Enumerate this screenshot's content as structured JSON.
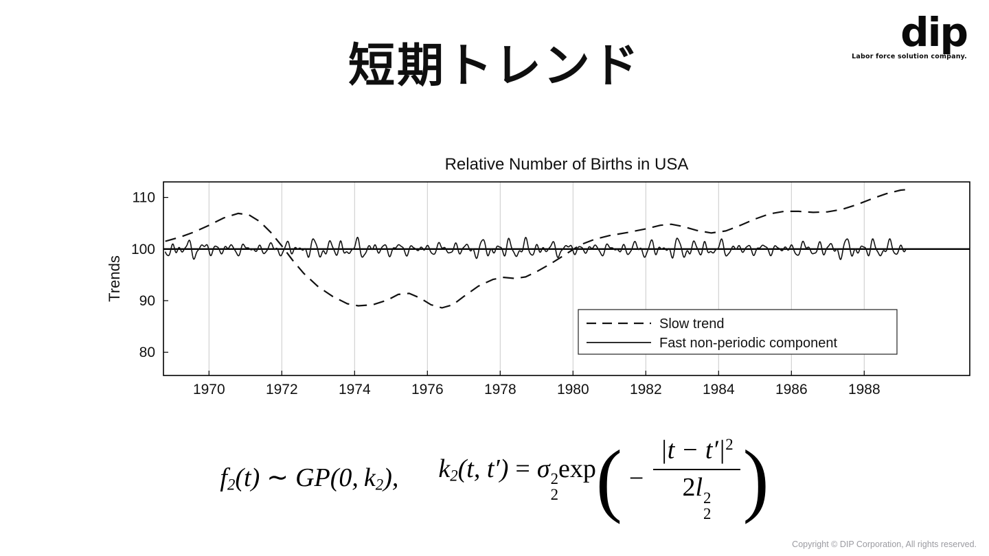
{
  "slide": {
    "title": "短期トレンド"
  },
  "logo": {
    "text": "dip",
    "tagline": "Labor force solution company."
  },
  "footer": {
    "copyright": "Copyright © DIP Corporation, All rights reserved."
  },
  "formula": {
    "f": "f",
    "f_sub": "2",
    "f_arg": "(t)",
    "sim": "∼",
    "gp": "GP",
    "gp_open": "(0,",
    "k1": "k",
    "k1_sub": "2",
    "gp_close": "),",
    "k2": "k",
    "k2_sub": "2",
    "k2_args": "(t, t′)",
    "eq": "=",
    "sigma": "σ",
    "sigma_sup": "2",
    "sigma_sub": "2",
    "exp": "exp",
    "lparen": "(",
    "minus": "−",
    "num_body": "|t − t′|",
    "num_sup": "2",
    "den_coef": "2",
    "den_var": "l",
    "den_sup": "2",
    "den_sub": "2",
    "rparen": ")"
  },
  "chart_data": {
    "type": "line",
    "title": "Relative Number of Births in USA",
    "xlabel": "",
    "ylabel": "Trends",
    "xlim": [
      1968.75,
      1990.9
    ],
    "ylim": [
      75.5,
      113
    ],
    "xticks": [
      1970,
      1972,
      1974,
      1976,
      1978,
      1980,
      1982,
      1984,
      1986,
      1988
    ],
    "yticks": [
      80,
      90,
      100,
      110
    ],
    "grid": "vertical-gridlines-light-gray",
    "baseline": 100,
    "legend": {
      "position": "lower right",
      "entries": [
        {
          "label": "Slow trend",
          "style": "dashed"
        },
        {
          "label": "Fast non-periodic component",
          "style": "solid"
        }
      ]
    },
    "series": [
      {
        "name": "Slow trend",
        "style": "dashed",
        "points": [
          [
            1968.8,
            101.5
          ],
          [
            1969.2,
            102.3
          ],
          [
            1969.6,
            103.3
          ],
          [
            1970.0,
            104.6
          ],
          [
            1970.4,
            106.0
          ],
          [
            1970.8,
            106.9
          ],
          [
            1971.1,
            106.6
          ],
          [
            1971.4,
            105.3
          ],
          [
            1971.7,
            103.2
          ],
          [
            1972.0,
            100.6
          ],
          [
            1972.3,
            97.8
          ],
          [
            1972.6,
            95.3
          ],
          [
            1973.0,
            92.7
          ],
          [
            1973.4,
            90.8
          ],
          [
            1973.8,
            89.4
          ],
          [
            1974.1,
            89.0
          ],
          [
            1974.5,
            89.2
          ],
          [
            1974.9,
            90.1
          ],
          [
            1975.2,
            91.2
          ],
          [
            1975.5,
            91.4
          ],
          [
            1975.8,
            90.5
          ],
          [
            1976.1,
            89.2
          ],
          [
            1976.4,
            88.6
          ],
          [
            1976.7,
            89.2
          ],
          [
            1977.0,
            90.8
          ],
          [
            1977.4,
            92.8
          ],
          [
            1977.8,
            94.1
          ],
          [
            1978.1,
            94.5
          ],
          [
            1978.4,
            94.3
          ],
          [
            1978.7,
            94.6
          ],
          [
            1979.0,
            95.6
          ],
          [
            1979.4,
            97.2
          ],
          [
            1979.8,
            99.0
          ],
          [
            1980.2,
            100.8
          ],
          [
            1980.6,
            101.9
          ],
          [
            1981.0,
            102.6
          ],
          [
            1981.5,
            103.2
          ],
          [
            1982.0,
            103.9
          ],
          [
            1982.4,
            104.6
          ],
          [
            1982.7,
            104.8
          ],
          [
            1983.0,
            104.4
          ],
          [
            1983.4,
            103.6
          ],
          [
            1983.8,
            103.1
          ],
          [
            1984.2,
            103.5
          ],
          [
            1984.6,
            104.6
          ],
          [
            1985.0,
            105.8
          ],
          [
            1985.4,
            106.8
          ],
          [
            1985.8,
            107.3
          ],
          [
            1986.2,
            107.3
          ],
          [
            1986.6,
            107.1
          ],
          [
            1987.0,
            107.2
          ],
          [
            1987.4,
            107.7
          ],
          [
            1987.8,
            108.6
          ],
          [
            1988.2,
            109.7
          ],
          [
            1988.6,
            110.7
          ],
          [
            1989.0,
            111.4
          ],
          [
            1989.15,
            111.5
          ]
        ]
      },
      {
        "name": "Fast non-periodic component",
        "style": "solid",
        "synthesis": {
          "note": "high-frequency oscillation around baseline 100, amplitude approx ±2",
          "baseline": 100,
          "range": [
            1968.8,
            1989.15
          ],
          "envelope": {
            "amp": 0.3,
            "freq": 0.21,
            "phase": 2.0
          },
          "components": [
            {
              "amp": 0.8,
              "freq": 2.6,
              "phase": 0.7
            },
            {
              "amp": 0.55,
              "freq": 4.1,
              "phase": 2.3
            },
            {
              "amp": 0.45,
              "freq": 1.7,
              "phase": 4.4
            },
            {
              "amp": 0.3,
              "freq": 6.3,
              "phase": 1.1
            }
          ]
        }
      }
    ]
  }
}
